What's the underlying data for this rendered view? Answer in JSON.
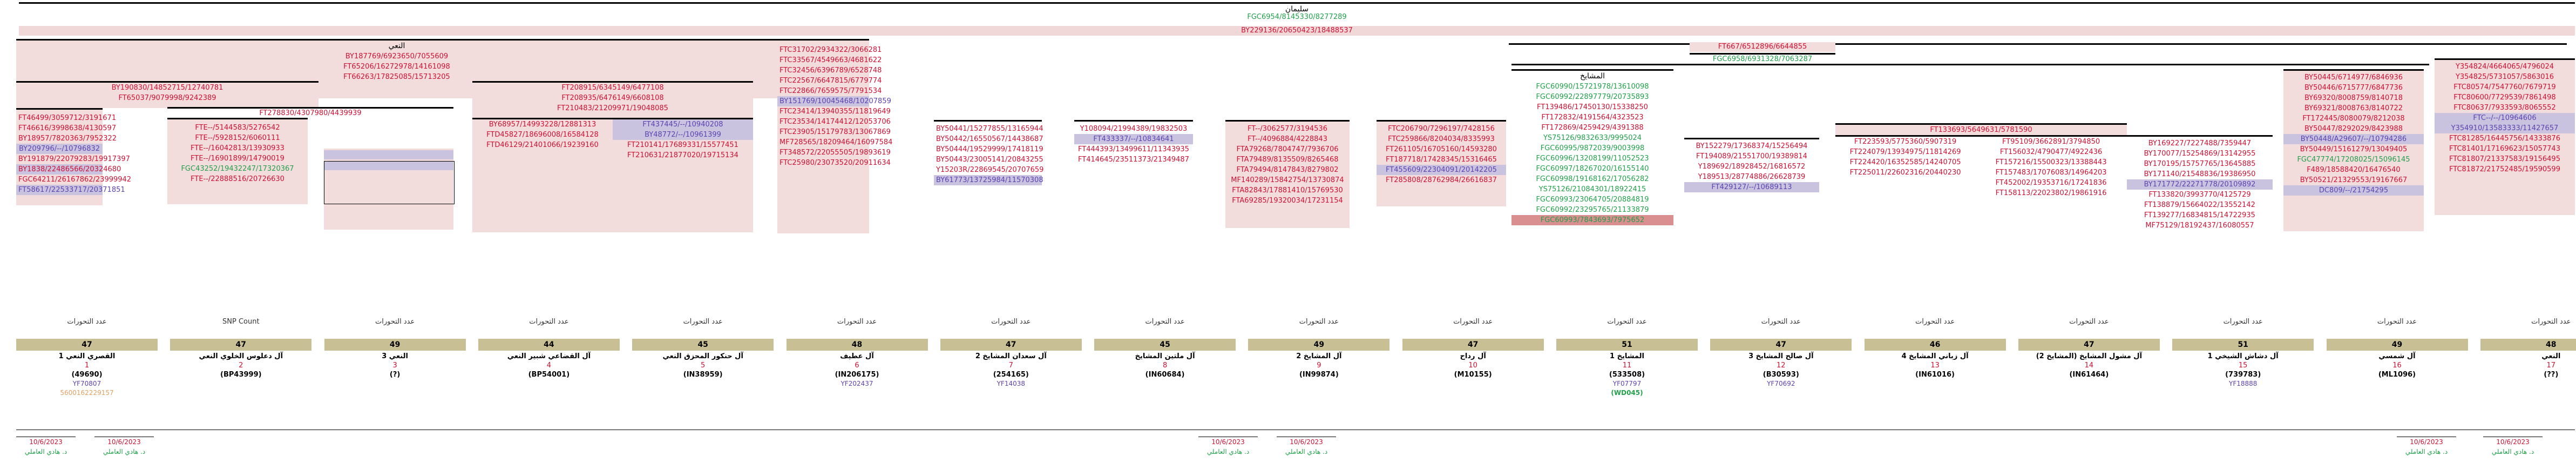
{
  "header": {
    "title": "سليمان",
    "top_ref": "FGC6954/8145330/8277289"
  },
  "second_ref": "BY229136/20650423/18488537",
  "blocks": [
    {
      "title": "النعي",
      "top": "BY187769/6923650/7055609",
      "rows": [
        "FT65206/16272978/14161098",
        "FT66263/17825085/15713205"
      ],
      "sub_left": [
        {
          "title": "BY190830/14852715/12740781",
          "rows": [
            "FT65037/9079998/9242389"
          ]
        },
        {
          "title": "FT278830/4307980/4439939",
          "rows": []
        }
      ]
    }
  ],
  "col_a": {
    "rows": [
      {
        "t": "FT46499/3059712/3191671",
        "c": "red"
      },
      {
        "t": "FT46616/3998638/4130597",
        "c": "red"
      },
      {
        "t": "BY18957/7820363/7952322",
        "c": "red"
      },
      {
        "t": "BY209796/--/10796832",
        "c": "blue",
        "bg": "purple"
      },
      {
        "t": "BY191879/22079283/19917397",
        "c": "red"
      },
      {
        "t": "BY1838/22486566/20324680",
        "c": "red",
        "bg": "purple"
      },
      {
        "t": "FGC64211/26167862/23999942",
        "c": "red"
      },
      {
        "t": "FT58617/22533717/20371851",
        "c": "blue",
        "bg": "purple"
      }
    ]
  },
  "col_b": {
    "rows": [
      {
        "t": "FTE--/5144583/5276542",
        "c": "red"
      },
      {
        "t": "FTE--/5928152/6060111",
        "c": "red"
      },
      {
        "t": "FTE--/16042813/13930933",
        "c": "red"
      },
      {
        "t": "FTE--/16901899/14790019",
        "c": "red"
      },
      {
        "t": "FGC43252/19432247/17320367",
        "c": "green"
      },
      {
        "t": "FTE--/22888516/20726630",
        "c": "red"
      }
    ]
  },
  "col_c": {
    "top": "FT208915/6345149/6477108",
    "rows": [
      {
        "t": "FT208935/6476149/6608108",
        "c": "red"
      },
      {
        "t": "FT210483/21209971/19048085",
        "c": "red"
      }
    ],
    "sub1": [
      {
        "t": "BY68957/14993228/12881313",
        "c": "red"
      },
      {
        "t": "FTD45827/18696008/16584128",
        "c": "red"
      },
      {
        "t": "FTD46129/21401066/19239160",
        "c": "red"
      }
    ],
    "sub2": [
      {
        "t": "FT437445/--/10940208",
        "c": "blue",
        "bg": "purple"
      },
      {
        "t": "BY48772/--/10961399",
        "c": "blue",
        "bg": "purple"
      },
      {
        "t": "FT210141/17689331/15577451",
        "c": "red"
      },
      {
        "t": "FT210631/21877020/19715134",
        "c": "red"
      }
    ]
  },
  "col_d": {
    "rows": [
      {
        "t": "FTC31702/2934322/3066281",
        "c": "red"
      },
      {
        "t": "FTC33567/4549663/4681622",
        "c": "red"
      },
      {
        "t": "FTC32456/6396789/6528748",
        "c": "red"
      },
      {
        "t": "FTC22567/6647815/6779774",
        "c": "red"
      },
      {
        "t": "FTC22866/7659575/7791534",
        "c": "red"
      },
      {
        "t": "BY151769/10045468/10207859",
        "c": "blue",
        "bg": "purple"
      },
      {
        "t": "FTC23414/13940355/11819649",
        "c": "red"
      },
      {
        "t": "FTC23534/14174412/12053706",
        "c": "red"
      },
      {
        "t": "FTC23905/15179783/13067869",
        "c": "red"
      },
      {
        "t": "MF728565/18209464/16097584",
        "c": "red"
      },
      {
        "t": "FT348572/22055505/19893619",
        "c": "red"
      },
      {
        "t": "FTC25980/23073520/20911634",
        "c": "red"
      }
    ]
  },
  "col_e": {
    "rows": [
      {
        "t": "BY50441/15277855/13165944",
        "c": "red"
      },
      {
        "t": "BY50442/16550567/14438687",
        "c": "red"
      },
      {
        "t": "BY50444/19529999/17418119",
        "c": "red"
      },
      {
        "t": "BY50443/23005141/20843255",
        "c": "red"
      },
      {
        "t": "Y15203R/22869545/20707659",
        "c": "red"
      },
      {
        "t": "BY61773/13725984/11570308",
        "c": "blue",
        "bg": "purple"
      }
    ]
  },
  "col_f": {
    "rows": [
      {
        "t": "Y108094/21994389/19832503",
        "c": "red"
      },
      {
        "t": "FT433337/--/10834641",
        "c": "blue",
        "bg": "purple"
      },
      {
        "t": "FT444393/13499611/11343935",
        "c": "red"
      },
      {
        "t": "FT414645/23511373/21349487",
        "c": "red"
      }
    ]
  },
  "col_g": {
    "rows": [
      {
        "t": "FT--/3062577/3194536",
        "c": "red"
      },
      {
        "t": "FT--/4096884/4228843",
        "c": "red"
      },
      {
        "t": "FTA79268/7804747/7936706",
        "c": "red"
      },
      {
        "t": "FTA79489/8135509/8265468",
        "c": "red"
      },
      {
        "t": "FTA79494/8147843/8279802",
        "c": "red"
      },
      {
        "t": "MF140289/15842754/13730874",
        "c": "red"
      },
      {
        "t": "FTA82843/17881410/15769530",
        "c": "red"
      },
      {
        "t": "FTA69285/19320034/17231154",
        "c": "red"
      }
    ]
  },
  "col_h": {
    "rows": [
      {
        "t": "FTC206790/7296197/7428156",
        "c": "red"
      },
      {
        "t": "FTC259866/8204034/8335993",
        "c": "red"
      },
      {
        "t": "FT261105/16705160/14593280",
        "c": "red"
      },
      {
        "t": "FT187718/17428345/15316465",
        "c": "red"
      },
      {
        "t": "FT455609/22304091/20142205",
        "c": "blue",
        "bg": "purple"
      },
      {
        "t": "FT285808/28762984/26616837",
        "c": "red"
      }
    ]
  },
  "mashaikh": {
    "title": "المشايخ",
    "rows": [
      {
        "t": "FGC60990/15721978/13610098",
        "c": "green"
      },
      {
        "t": "FGC60992/22897779/20735893",
        "c": "green"
      },
      {
        "t": "FT139486/17450130/15338250",
        "c": "red"
      },
      {
        "t": "FT172832/4191564/4323523",
        "c": "red"
      },
      {
        "t": "FT172869/4259429/4391388",
        "c": "red"
      },
      {
        "t": "YS75126/9832633/9995024",
        "c": "green"
      },
      {
        "t": "FGC60995/9872039/9003998",
        "c": "green"
      },
      {
        "t": "FGC60996/13208199/11052523",
        "c": "green"
      },
      {
        "t": "FGC60997/18267020/16155140",
        "c": "green"
      },
      {
        "t": "FGC60998/19168162/17056282",
        "c": "green"
      },
      {
        "t": "YS75126/21084301/18922415",
        "c": "green"
      },
      {
        "t": "FGC60993/23064705/20884819",
        "c": "green"
      },
      {
        "t": "FGC60992/23295765/21133879",
        "c": "green"
      },
      {
        "t": "FGC60993/7843693/7975652",
        "c": "green",
        "bg": "red"
      }
    ]
  },
  "right_top": {
    "a": "FT667/6512896/6644855",
    "b": "FGC6958/6931328/7063287"
  },
  "col_i": {
    "rows": [
      {
        "t": "BY152279/17368374/15256494",
        "c": "red"
      },
      {
        "t": "FT194089/21551700/19389814",
        "c": "red"
      },
      {
        "t": "Y189692/18928452/16816572",
        "c": "red"
      },
      {
        "t": "Y189513/28774886/26628739",
        "c": "red"
      },
      {
        "t": "FT429127/--/10689113",
        "c": "blue",
        "bg": "purple"
      }
    ]
  },
  "col_j": {
    "top": "FT133693/5649631/5781590",
    "rows": [
      {
        "t": "FT223593/5775360/5907319",
        "c": "red"
      },
      {
        "t": "FT224079/13934975/11814269",
        "c": "red"
      },
      {
        "t": "FT224420/16352585/14240705",
        "c": "red"
      },
      {
        "t": "FT225011/22602316/20440230",
        "c": "red"
      }
    ]
  },
  "col_k": {
    "rows": [
      {
        "t": "FT95109/3662891/3794850",
        "c": "red"
      },
      {
        "t": "FT156032/4790477/4922436",
        "c": "red"
      },
      {
        "t": "FT157216/15500323/13388443",
        "c": "red"
      },
      {
        "t": "FT157483/17076083/14964203",
        "c": "red"
      },
      {
        "t": "FT452002/19353716/17241836",
        "c": "red"
      },
      {
        "t": "FT158113/22023802/19861916",
        "c": "red"
      }
    ]
  },
  "col_l": {
    "rows": [
      {
        "t": "BY169227/7227488/7359447",
        "c": "red"
      },
      {
        "t": "BY170077/15254869/13142955",
        "c": "red"
      },
      {
        "t": "BY170195/15757765/13645885",
        "c": "red"
      },
      {
        "t": "BY171140/21548836/19386950",
        "c": "red"
      },
      {
        "t": "BY171772/22271778/20109892",
        "c": "blue",
        "bg": "purple"
      },
      {
        "t": "FT133820/3993770/4125729",
        "c": "red"
      },
      {
        "t": "FT138879/15664022/13552142",
        "c": "red"
      },
      {
        "t": "FT139277/16834815/14722935",
        "c": "red"
      },
      {
        "t": "MF75129/18192437/16080557",
        "c": "red"
      }
    ]
  },
  "col_m": {
    "rows": [
      {
        "t": "BY50445/6714977/6846936",
        "c": "red"
      },
      {
        "t": "BY50446/6715777/6847736",
        "c": "red"
      },
      {
        "t": "BY69320/8008759/8140718",
        "c": "red"
      },
      {
        "t": "BY69321/8008763/8140722",
        "c": "red"
      },
      {
        "t": "FT172445/8080079/8212038",
        "c": "red"
      },
      {
        "t": "BY50447/8292029/8423988",
        "c": "red"
      },
      {
        "t": "BY50448/A29607/--/10794286",
        "c": "blue",
        "bg": "purple"
      },
      {
        "t": "BY50449/15161279/13049405",
        "c": "red"
      },
      {
        "t": "FGC47774/17208025/15096145",
        "c": "green"
      },
      {
        "t": "F489/18588420/16476540",
        "c": "red"
      },
      {
        "t": "BY50521/21329553/19167667",
        "c": "red"
      },
      {
        "t": "DC809/--/21754295",
        "c": "blue",
        "bg": "purple"
      }
    ]
  },
  "col_n": {
    "rows": [
      {
        "t": "Y354824/4664065/4796024",
        "c": "red"
      },
      {
        "t": "Y354825/5731057/5863016",
        "c": "red"
      },
      {
        "t": "FTC80574/7547760/7679719",
        "c": "red"
      },
      {
        "t": "FTC80600/7729539/7861498",
        "c": "red"
      },
      {
        "t": "FTC80637/7933593/8065552",
        "c": "red"
      },
      {
        "t": "FTC--/--/10964606",
        "c": "blue",
        "bg": "purple"
      },
      {
        "t": "Y354910/13583333/11427657",
        "c": "blue",
        "bg": "purple"
      },
      {
        "t": "FTC81285/16445756/14333876",
        "c": "red"
      },
      {
        "t": "FTC81401/17169623/15057743",
        "c": "red"
      },
      {
        "t": "FTC81807/21337583/19156495",
        "c": "red"
      },
      {
        "t": "FTC81872/21752485/19590599",
        "c": "red"
      }
    ]
  },
  "columns": [
    {
      "lbl": "عدد التحورات",
      "bar": "47",
      "name": "القصري النعي 1",
      "num": "1",
      "code": "(49690)",
      "ext": "YF70807",
      "sub": "5600162229157",
      "sub_color": "orange"
    },
    {
      "lbl": "SNP Count",
      "bar": "47",
      "name": "آل دعلوس الخلوي النعي",
      "num": "2",
      "code": "(BP43999)",
      "ext": "",
      "sub": ""
    },
    {
      "lbl": "عدد التحورات",
      "bar": "49",
      "name": "النعي 3",
      "num": "3",
      "code": "(?)",
      "ext": "",
      "sub": ""
    },
    {
      "lbl": "عدد التحورات",
      "bar": "44",
      "name": "آل القضاعي شبير النعي",
      "num": "4",
      "code": "(BP54001)",
      "ext": "",
      "sub": ""
    },
    {
      "lbl": "عدد التحورات",
      "bar": "45",
      "name": "آل حنكور المحزق النعي",
      "num": "5",
      "code": "(IN38959)",
      "ext": "",
      "sub": ""
    },
    {
      "lbl": "عدد التحورات",
      "bar": "48",
      "name": "آل عطيف",
      "num": "6",
      "code": "(IN206175)",
      "ext": "YF202437",
      "sub": ""
    },
    {
      "lbl": "عدد التحورات",
      "bar": "47",
      "name": "آل سعدان المشايخ 2",
      "num": "7",
      "code": "(254165)",
      "ext": "YF14038",
      "sub": ""
    },
    {
      "lbl": "عدد التحورات",
      "bar": "45",
      "name": "آل ملتين المشايخ",
      "num": "8",
      "code": "(IN60684)",
      "ext": "",
      "sub": ""
    },
    {
      "lbl": "عدد التحورات",
      "bar": "49",
      "name": "آل المشايخ 2",
      "num": "9",
      "code": "(IN99874)",
      "ext": "",
      "sub": ""
    },
    {
      "lbl": "عدد التحورات",
      "bar": "47",
      "name": "آل رداح",
      "num": "10",
      "code": "(M10155)",
      "ext": "",
      "sub": ""
    },
    {
      "lbl": "عدد التحورات",
      "bar": "51",
      "name": "المشايخ 1",
      "num": "11",
      "code": "(533508)",
      "ext": "YF07797",
      "sub": "(WD045)",
      "sub_color": "green"
    },
    {
      "lbl": "عدد التحورات",
      "bar": "47",
      "name": "آل صالح المشايخ 3",
      "num": "12",
      "code": "(B30593)",
      "ext": "YF70692",
      "sub": ""
    },
    {
      "lbl": "عدد التحورات",
      "bar": "46",
      "name": "آل زباني المشايخ 4",
      "num": "13",
      "code": "(IN61016)",
      "ext": "",
      "sub": ""
    },
    {
      "lbl": "عدد التحورات",
      "bar": "47",
      "name": "آل مشول المشايخ (المشايخ 2)",
      "num": "14",
      "code": "(IN61464)",
      "ext": "",
      "sub": ""
    },
    {
      "lbl": "عدد التحورات",
      "bar": "51",
      "name": "آل دشاش الشيخي 1",
      "num": "15",
      "code": "(739783)",
      "ext": "YF18888",
      "sub": ""
    },
    {
      "lbl": "عدد التحورات",
      "bar": "49",
      "name": "آل شمسي",
      "num": "16",
      "code": "(ML1096)",
      "ext": "",
      "sub": ""
    },
    {
      "lbl": "عدد التحورات",
      "bar": "48",
      "name": "النعي",
      "num": "17",
      "code": "(??)",
      "ext": "",
      "sub": ""
    }
  ],
  "signatures": [
    {
      "date": "10/6/2023",
      "name": "د. هادي العاملي"
    },
    {
      "date": "10/6/2023",
      "name": "د. هادي العاملي"
    },
    {
      "date": "10/6/2023",
      "name": "د. هادي العاملي"
    },
    {
      "date": "10/6/2023",
      "name": "د. هادي العاملي"
    },
    {
      "date": "10/6/2023",
      "name": "د. هادي العاملي"
    },
    {
      "date": "10/6/2023",
      "name": "د. هادي العاملي"
    }
  ]
}
